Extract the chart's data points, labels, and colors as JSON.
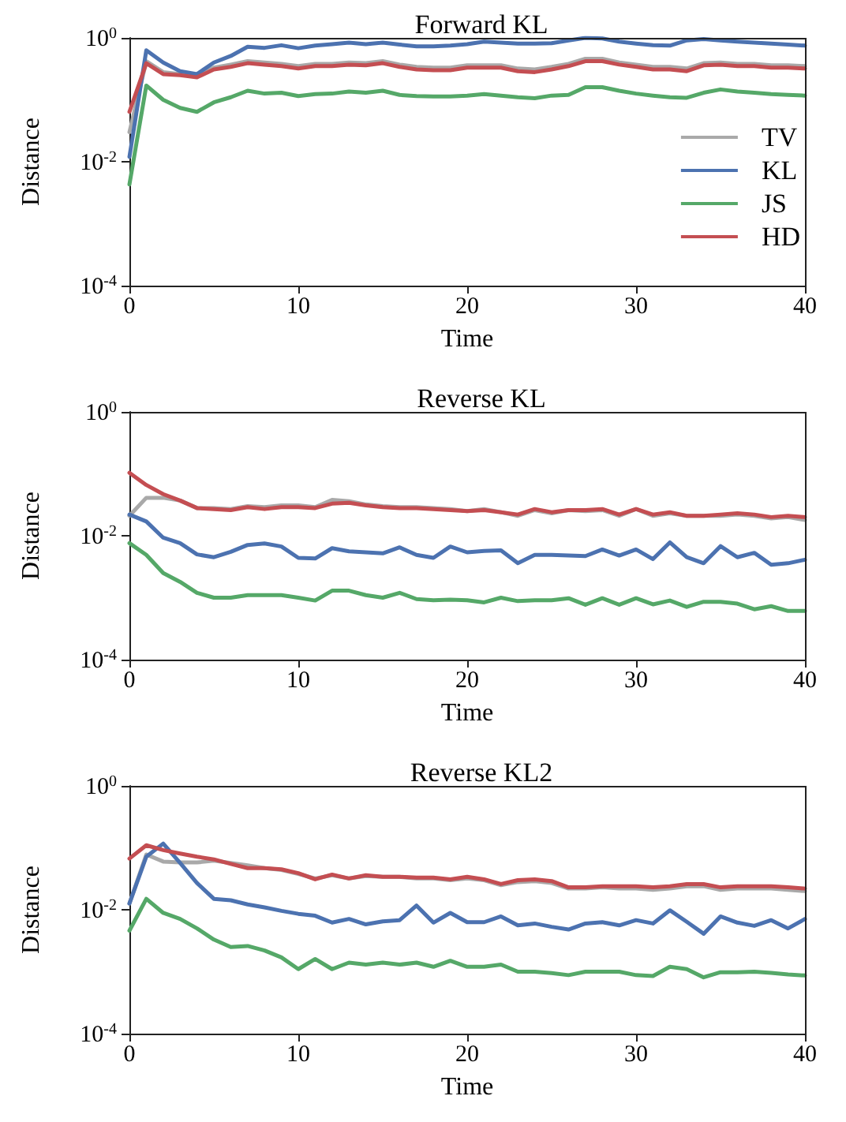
{
  "chart_data": [
    {
      "type": "line",
      "title": "Forward KL",
      "xlabel": "Time",
      "ylabel": "Distance",
      "x": [
        0,
        1,
        2,
        3,
        4,
        5,
        6,
        7,
        8,
        9,
        10,
        11,
        12,
        13,
        14,
        15,
        16,
        17,
        18,
        19,
        20,
        21,
        22,
        23,
        24,
        25,
        26,
        27,
        28,
        29,
        30,
        31,
        32,
        33,
        34,
        35,
        36,
        37,
        38,
        39,
        40
      ],
      "series": [
        {
          "name": "TV",
          "color": "#a9a9a9",
          "values": [
            0.03,
            0.42,
            0.28,
            0.26,
            0.25,
            0.33,
            0.37,
            0.42,
            0.4,
            0.38,
            0.35,
            0.38,
            0.38,
            0.4,
            0.39,
            0.42,
            0.37,
            0.34,
            0.33,
            0.33,
            0.36,
            0.36,
            0.36,
            0.32,
            0.31,
            0.34,
            0.38,
            0.46,
            0.46,
            0.4,
            0.37,
            0.34,
            0.34,
            0.32,
            0.39,
            0.4,
            0.38,
            0.38,
            0.36,
            0.36,
            0.35
          ]
        },
        {
          "name": "KL",
          "color": "#4c72b0",
          "values": [
            0.012,
            0.63,
            0.4,
            0.29,
            0.26,
            0.4,
            0.51,
            0.72,
            0.69,
            0.76,
            0.68,
            0.75,
            0.79,
            0.84,
            0.79,
            0.84,
            0.78,
            0.73,
            0.73,
            0.75,
            0.79,
            0.87,
            0.84,
            0.81,
            0.81,
            0.82,
            0.91,
            1.0,
            0.98,
            0.87,
            0.81,
            0.76,
            0.75,
            0.91,
            0.96,
            0.91,
            0.87,
            0.84,
            0.81,
            0.78,
            0.75
          ]
        },
        {
          "name": "JS",
          "color": "#55a868",
          "values": [
            0.0043,
            0.17,
            0.1,
            0.074,
            0.064,
            0.091,
            0.11,
            0.14,
            0.126,
            0.13,
            0.115,
            0.124,
            0.126,
            0.136,
            0.13,
            0.14,
            0.12,
            0.115,
            0.113,
            0.113,
            0.117,
            0.124,
            0.117,
            0.11,
            0.106,
            0.117,
            0.12,
            0.16,
            0.16,
            0.14,
            0.126,
            0.117,
            0.11,
            0.108,
            0.13,
            0.147,
            0.136,
            0.13,
            0.124,
            0.12,
            0.117
          ]
        },
        {
          "name": "HD",
          "color": "#c44e52",
          "values": [
            0.064,
            0.39,
            0.26,
            0.25,
            0.23,
            0.31,
            0.34,
            0.39,
            0.37,
            0.35,
            0.32,
            0.35,
            0.35,
            0.37,
            0.36,
            0.39,
            0.34,
            0.31,
            0.3,
            0.3,
            0.33,
            0.33,
            0.33,
            0.29,
            0.28,
            0.31,
            0.35,
            0.42,
            0.42,
            0.37,
            0.34,
            0.31,
            0.31,
            0.29,
            0.36,
            0.37,
            0.35,
            0.35,
            0.33,
            0.33,
            0.32
          ]
        }
      ],
      "xlim": [
        0,
        40
      ],
      "xticks": [
        0,
        10,
        20,
        30,
        40
      ],
      "ylim": [
        0.0001,
        1
      ],
      "yticks": [
        {
          "value": 0.0001,
          "label": "10$^{-4}$"
        },
        {
          "value": 0.01,
          "label": "10$^{-2}$"
        },
        {
          "value": 1,
          "label": "10$^{0}$"
        }
      ],
      "log": "y",
      "grid": false,
      "legend": "right",
      "marker": "none",
      "line_style": "solid"
    },
    {
      "type": "line",
      "title": "Reverse KL",
      "xlabel": "Time",
      "ylabel": "Distance",
      "x": [
        0,
        1,
        2,
        3,
        4,
        5,
        6,
        7,
        8,
        9,
        10,
        11,
        12,
        13,
        14,
        15,
        16,
        17,
        18,
        19,
        20,
        21,
        22,
        23,
        24,
        25,
        26,
        27,
        28,
        29,
        30,
        31,
        32,
        33,
        34,
        35,
        36,
        37,
        38,
        39,
        40
      ],
      "series": [
        {
          "color": "#a9a9a9",
          "values": [
            0.021,
            0.041,
            0.041,
            0.037,
            0.028,
            0.028,
            0.027,
            0.03,
            0.029,
            0.031,
            0.031,
            0.029,
            0.038,
            0.036,
            0.032,
            0.03,
            0.029,
            0.029,
            0.028,
            0.027,
            0.025,
            0.027,
            0.024,
            0.021,
            0.026,
            0.023,
            0.026,
            0.025,
            0.026,
            0.021,
            0.027,
            0.021,
            0.023,
            0.021,
            0.021,
            0.021,
            0.022,
            0.021,
            0.019,
            0.02,
            0.018
          ]
        },
        {
          "color": "#4c72b0",
          "values": [
            0.022,
            0.017,
            0.0093,
            0.0076,
            0.005,
            0.0045,
            0.0055,
            0.0071,
            0.0075,
            0.0067,
            0.0044,
            0.0043,
            0.0063,
            0.0056,
            0.0054,
            0.0052,
            0.0065,
            0.0049,
            0.0044,
            0.0067,
            0.0054,
            0.0057,
            0.0058,
            0.0036,
            0.0049,
            0.0049,
            0.0048,
            0.0047,
            0.006,
            0.0048,
            0.006,
            0.0042,
            0.0078,
            0.0045,
            0.0036,
            0.0068,
            0.0045,
            0.0053,
            0.0034,
            0.0036,
            0.0041
          ]
        },
        {
          "color": "#55a868",
          "values": [
            0.0076,
            0.0049,
            0.0025,
            0.0018,
            0.0012,
            0.001,
            0.001,
            0.0011,
            0.0011,
            0.0011,
            0.001,
            0.0009,
            0.0013,
            0.0013,
            0.0011,
            0.001,
            0.0012,
            0.00095,
            0.00091,
            0.00093,
            0.00091,
            0.00084,
            0.001,
            0.00088,
            0.00091,
            0.00091,
            0.00098,
            0.00077,
            0.00098,
            0.00077,
            0.00098,
            0.00078,
            0.0009,
            0.00071,
            0.00086,
            0.00086,
            0.0008,
            0.00065,
            0.00073,
            0.00061,
            0.00061
          ]
        },
        {
          "color": "#c44e52",
          "values": [
            0.104,
            0.066,
            0.047,
            0.037,
            0.028,
            0.027,
            0.026,
            0.029,
            0.027,
            0.029,
            0.029,
            0.028,
            0.033,
            0.034,
            0.031,
            0.029,
            0.028,
            0.028,
            0.027,
            0.026,
            0.025,
            0.026,
            0.024,
            0.022,
            0.027,
            0.024,
            0.026,
            0.026,
            0.027,
            0.022,
            0.027,
            0.022,
            0.024,
            0.021,
            0.021,
            0.022,
            0.023,
            0.022,
            0.02,
            0.021,
            0.02
          ]
        }
      ],
      "xlim": [
        0,
        40
      ],
      "xticks": [
        0,
        10,
        20,
        30,
        40
      ],
      "ylim": [
        0.0001,
        1
      ],
      "yticks": [
        {
          "value": 0.0001,
          "label": "10$^{-4}$"
        },
        {
          "value": 0.01,
          "label": "10$^{-2}$"
        },
        {
          "value": 1,
          "label": "10$^{0}$"
        }
      ],
      "log": "y",
      "grid": false,
      "marker": "none",
      "line_style": "solid"
    },
    {
      "type": "line",
      "title": "Reverse KL2",
      "xlabel": "Time",
      "ylabel": "Distance",
      "x": [
        0,
        1,
        2,
        3,
        4,
        5,
        6,
        7,
        8,
        9,
        10,
        11,
        12,
        13,
        14,
        15,
        16,
        17,
        18,
        19,
        20,
        21,
        22,
        23,
        24,
        25,
        26,
        27,
        28,
        29,
        30,
        31,
        32,
        33,
        34,
        35,
        36,
        37,
        38,
        39,
        40
      ],
      "series": [
        {
          "color": "#a9a9a9",
          "values": [
            0.0126,
            0.078,
            0.06,
            0.058,
            0.058,
            0.062,
            0.057,
            0.052,
            0.047,
            0.044,
            0.038,
            0.032,
            0.036,
            0.032,
            0.035,
            0.034,
            0.034,
            0.032,
            0.032,
            0.03,
            0.032,
            0.03,
            0.025,
            0.028,
            0.029,
            0.027,
            0.022,
            0.022,
            0.023,
            0.022,
            0.022,
            0.021,
            0.022,
            0.024,
            0.024,
            0.021,
            0.022,
            0.022,
            0.022,
            0.021,
            0.02
          ]
        },
        {
          "color": "#4c72b0",
          "values": [
            0.0126,
            0.072,
            0.117,
            0.057,
            0.027,
            0.015,
            0.0142,
            0.0122,
            0.0109,
            0.0096,
            0.0086,
            0.008,
            0.0062,
            0.0071,
            0.0058,
            0.0065,
            0.0068,
            0.0117,
            0.0062,
            0.0089,
            0.0063,
            0.0063,
            0.0078,
            0.0056,
            0.006,
            0.0053,
            0.0048,
            0.006,
            0.0063,
            0.0056,
            0.0068,
            0.006,
            0.0098,
            0.0064,
            0.0041,
            0.0078,
            0.0062,
            0.0055,
            0.0068,
            0.005,
            0.0071
          ]
        },
        {
          "color": "#55a868",
          "values": [
            0.0046,
            0.015,
            0.0089,
            0.0071,
            0.005,
            0.0033,
            0.0025,
            0.0026,
            0.0022,
            0.0017,
            0.0011,
            0.0016,
            0.0011,
            0.0014,
            0.0013,
            0.0014,
            0.0013,
            0.0014,
            0.0012,
            0.0015,
            0.0012,
            0.0012,
            0.0013,
            0.001,
            0.001,
            0.00095,
            0.00088,
            0.001,
            0.001,
            0.001,
            0.00088,
            0.00085,
            0.0012,
            0.0011,
            0.00081,
            0.00098,
            0.00098,
            0.001,
            0.00096,
            0.0009,
            0.00087
          ]
        },
        {
          "color": "#c44e52",
          "values": [
            0.067,
            0.11,
            0.092,
            0.081,
            0.072,
            0.065,
            0.055,
            0.047,
            0.047,
            0.045,
            0.039,
            0.031,
            0.037,
            0.032,
            0.036,
            0.034,
            0.034,
            0.033,
            0.033,
            0.031,
            0.034,
            0.031,
            0.026,
            0.03,
            0.031,
            0.029,
            0.023,
            0.023,
            0.024,
            0.024,
            0.024,
            0.023,
            0.024,
            0.026,
            0.026,
            0.023,
            0.024,
            0.024,
            0.024,
            0.023,
            0.022
          ]
        }
      ],
      "xlim": [
        0,
        40
      ],
      "xticks": [
        0,
        10,
        20,
        30,
        40
      ],
      "ylim": [
        0.0001,
        1
      ],
      "yticks": [
        {
          "value": 0.0001,
          "label": "10$^{-4}$"
        },
        {
          "value": 0.01,
          "label": "10$^{-2}$"
        },
        {
          "value": 1,
          "label": "10$^{0}$"
        }
      ],
      "log": "y",
      "grid": false,
      "marker": "none",
      "line_style": "solid"
    }
  ]
}
